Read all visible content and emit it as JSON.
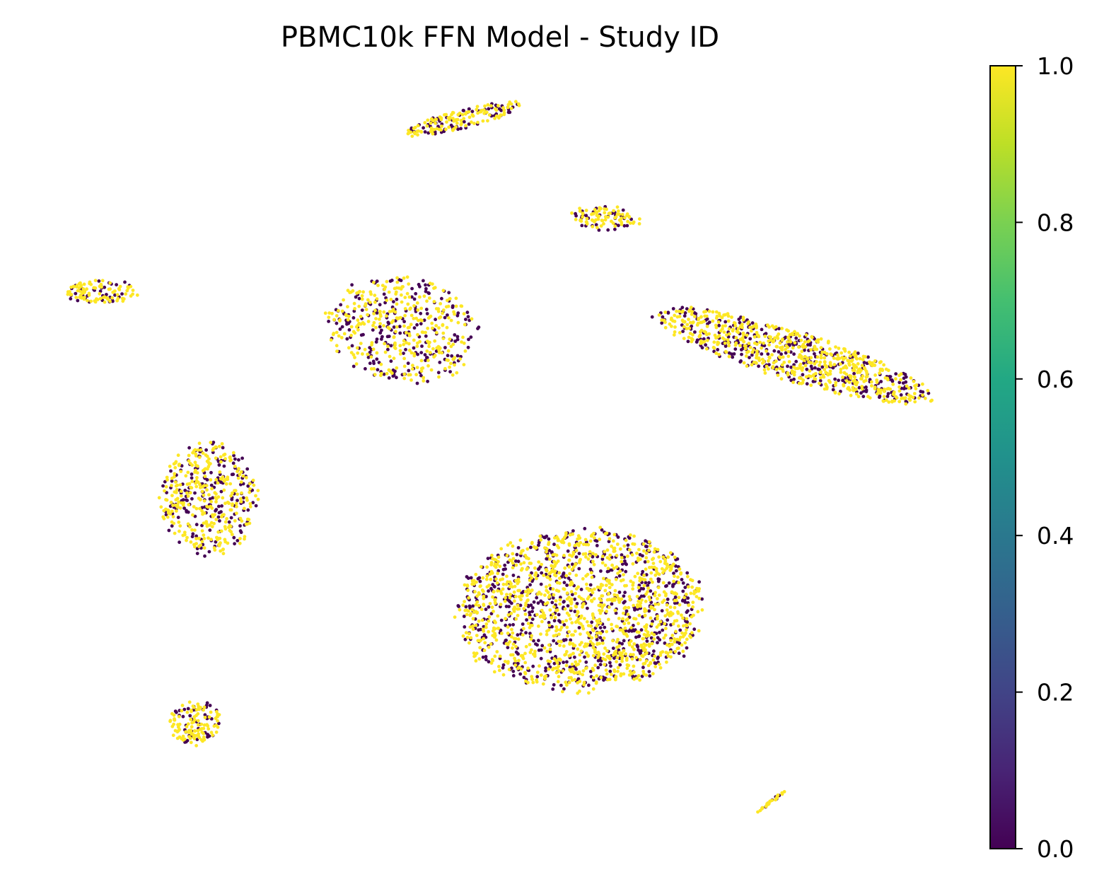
{
  "chart_data": {
    "type": "scatter",
    "title": "PBMC10k FFN Model - Study ID",
    "xlabel": "",
    "ylabel": "",
    "axes_visible": false,
    "grid": false,
    "colormap": "viridis",
    "colorbar": {
      "vmin": 0.0,
      "vmax": 1.0,
      "ticks": [
        0.0,
        0.2,
        0.4,
        0.6,
        0.8,
        1.0
      ],
      "tick_labels": [
        "0.0",
        "0.2",
        "0.4",
        "0.6",
        "0.8",
        "1.0"
      ],
      "placement": "right"
    },
    "values_present": [
      0,
      1
    ],
    "colors": {
      "value_0": "#440154",
      "value_1": "#fde725"
    },
    "clusters": [
      {
        "name": "top-elongated",
        "count": 190,
        "frac_1": 0.65
      },
      {
        "name": "top-small",
        "count": 110,
        "frac_1": 0.7
      },
      {
        "name": "left-small",
        "count": 120,
        "frac_1": 0.75
      },
      {
        "name": "upper-middle",
        "count": 520,
        "frac_1": 0.6
      },
      {
        "name": "right-elongated",
        "count": 900,
        "frac_1": 0.62
      },
      {
        "name": "left-middle",
        "count": 480,
        "frac_1": 0.65
      },
      {
        "name": "center-large",
        "count": 1800,
        "frac_1": 0.62
      },
      {
        "name": "bottom-left-small",
        "count": 150,
        "frac_1": 0.7
      },
      {
        "name": "bottom-line",
        "count": 30,
        "frac_1": 0.8
      }
    ]
  }
}
